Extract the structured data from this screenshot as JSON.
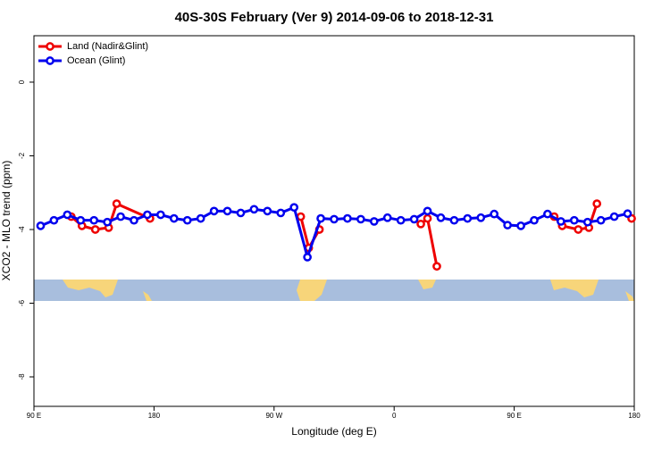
{
  "chart_data": {
    "type": "line",
    "title": "40S-30S February (Ver 9)   2014-09-06 to 2018-12-31",
    "xlabel": "Longitude (deg E)",
    "ylabel": "XCO2 - MLO trend (ppm)",
    "xlim": [
      90,
      540
    ],
    "ylim": [
      -8.8,
      1.26
    ],
    "xticks": [
      {
        "value": 90,
        "label": "90 E"
      },
      180,
      {
        "value": 270,
        "label": "90 W"
      },
      {
        "value": 360,
        "label": "0"
      },
      {
        "value": 450,
        "label": "90 E"
      },
      {
        "value": 540,
        "label": "180"
      }
    ],
    "yticks": [
      0,
      -2,
      -4,
      -6,
      -8
    ],
    "legend": "top-left",
    "series": [
      {
        "name": "Land (Nadir&Glint)",
        "color": "#ee0000",
        "x": [
          118,
          126,
          136,
          146,
          152,
          177,
          null,
          290,
          296,
          304,
          null,
          380,
          385,
          392,
          null,
          480,
          486,
          498,
          506,
          512,
          null,
          538
        ],
        "values": [
          -3.65,
          -3.9,
          -4.0,
          -3.95,
          -3.3,
          -3.7,
          null,
          -3.65,
          -4.5,
          -4.0,
          null,
          -3.85,
          -3.7,
          -5.0,
          null,
          -3.65,
          -3.9,
          -4.0,
          -3.95,
          -3.3,
          null,
          -3.7
        ]
      },
      {
        "name": "Ocean (Glint)",
        "color": "#0000ee",
        "x": [
          95,
          105,
          115,
          125,
          135,
          145,
          155,
          165,
          175,
          185,
          195,
          205,
          215,
          225,
          235,
          245,
          255,
          265,
          275,
          285,
          295,
          305,
          315,
          325,
          335,
          345,
          355,
          365,
          375,
          385,
          395,
          405,
          415,
          425,
          435,
          445,
          455,
          465,
          475,
          485,
          495,
          505,
          515,
          525,
          535
        ],
        "values": [
          -3.9,
          -3.75,
          -3.6,
          -3.75,
          -3.75,
          -3.8,
          -3.65,
          -3.75,
          -3.6,
          -3.6,
          -3.7,
          -3.75,
          -3.7,
          -3.5,
          -3.5,
          -3.55,
          -3.45,
          -3.5,
          -3.55,
          -3.4,
          -4.75,
          -3.7,
          -3.72,
          -3.7,
          -3.72,
          -3.78,
          -3.68,
          -3.75,
          -3.72,
          -3.5,
          -3.68,
          -3.75,
          -3.7,
          -3.68,
          -3.58,
          -3.88,
          -3.9,
          -3.75,
          -3.58,
          -3.78,
          -3.75,
          -3.8,
          -3.75,
          -3.65,
          -3.57
        ]
      }
    ]
  }
}
